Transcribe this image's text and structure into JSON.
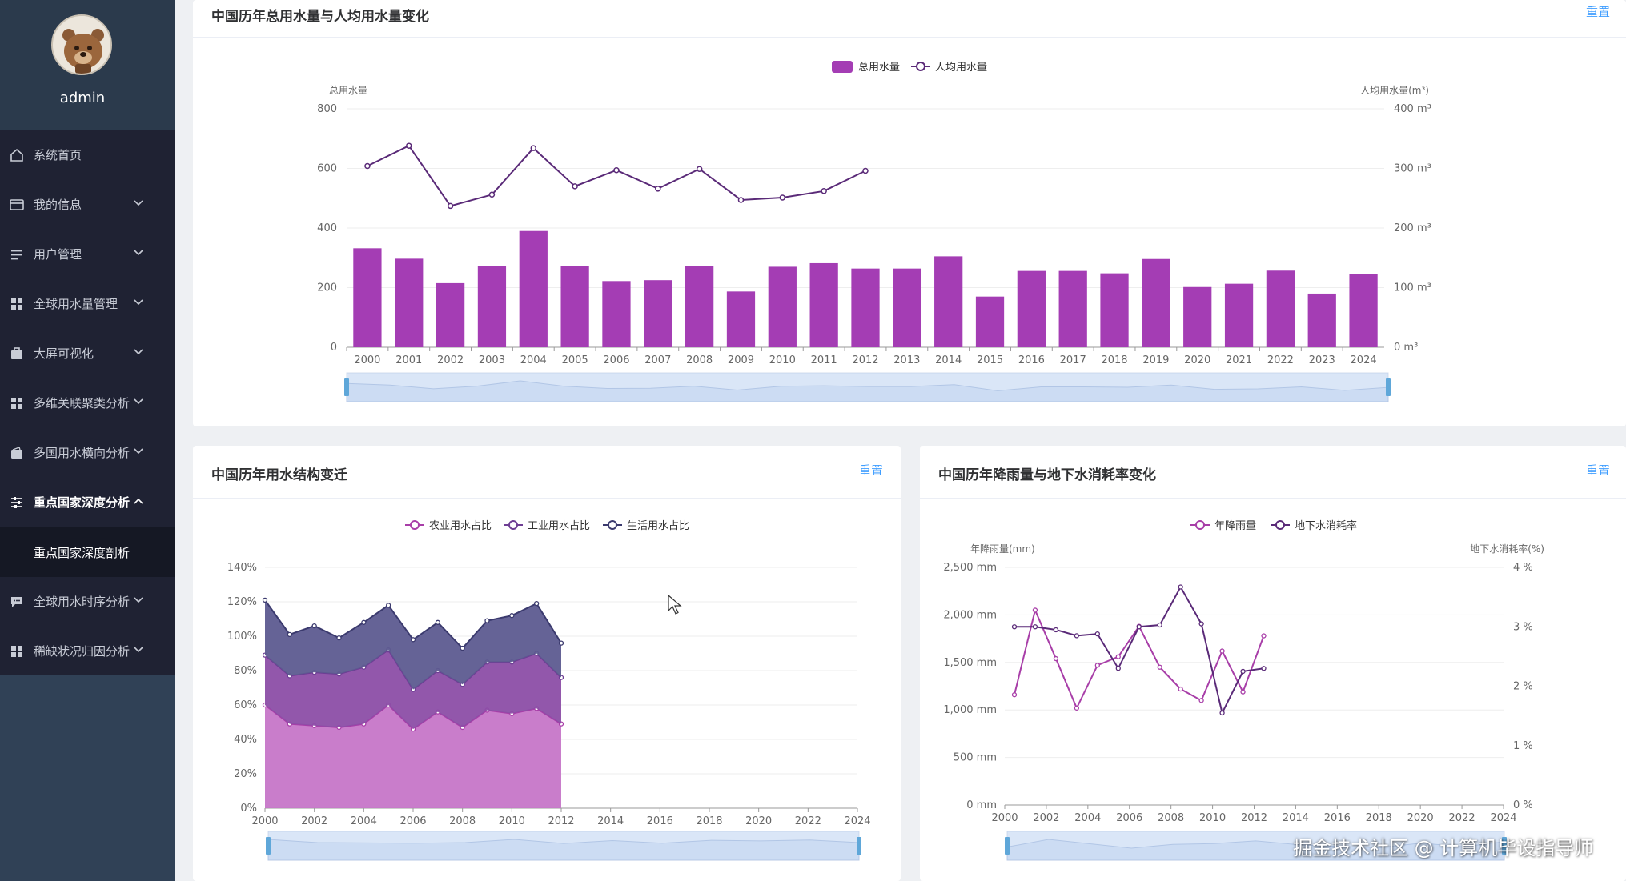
{
  "sidebar": {
    "username": "admin",
    "items": [
      {
        "label": "系统首页",
        "icon": "home-icon",
        "arrow": false
      },
      {
        "label": "我的信息",
        "icon": "card-icon",
        "arrow": true
      },
      {
        "label": "用户管理",
        "icon": "list-icon",
        "arrow": true
      },
      {
        "label": "全球用水量管理",
        "icon": "grid-icon",
        "arrow": true
      },
      {
        "label": "大屏可视化",
        "icon": "briefcase-icon",
        "arrow": true
      },
      {
        "label": "多维关联聚类分析",
        "icon": "grid-icon",
        "arrow": true
      },
      {
        "label": "多国用水横向分析",
        "icon": "wallet-icon",
        "arrow": true
      },
      {
        "label": "重点国家深度分析",
        "icon": "sliders-icon",
        "arrow": true,
        "expanded": true
      },
      {
        "label": "全球用水时序分析",
        "icon": "message-icon",
        "arrow": true
      },
      {
        "label": "稀缺状况归因分析",
        "icon": "grid-icon",
        "arrow": true
      }
    ],
    "subitem": "重点国家深度剖析"
  },
  "panels": {
    "top": {
      "title": "中国历年总用水量与人均用水量变化",
      "reset": "重置"
    },
    "bottom_left": {
      "title": "中国历年用水结构变迁",
      "reset": "重置"
    },
    "bottom_right": {
      "title": "中国历年降雨量与地下水消耗率变化",
      "reset": "重置"
    }
  },
  "watermark": "掘金技术社区 @ 计算机毕设指导师",
  "colors": {
    "sidebar_bg": "#304156",
    "menu_bg": "#1f2233",
    "bar": "#a43db4",
    "line_dark": "#5a2a78",
    "accent": "#409eff",
    "area_agri": "#c676c8",
    "area_ind": "#8c4ea6",
    "area_life": "#5d5b90"
  },
  "chart_data": [
    {
      "type": "bar",
      "categories": [
        "2000",
        "2001",
        "2002",
        "2003",
        "2004",
        "2005",
        "2006",
        "2007",
        "2008",
        "2009",
        "2010",
        "2011",
        "2012",
        "2013",
        "2014",
        "2015",
        "2016",
        "2017",
        "2018",
        "2019",
        "2020",
        "2021",
        "2022",
        "2023",
        "2024"
      ],
      "series": [
        {
          "name": "总用水量",
          "type": "bar",
          "axis": "left",
          "values": [
            332,
            297,
            215,
            273,
            390,
            273,
            222,
            225,
            272,
            187,
            270,
            282,
            264,
            264,
            305,
            170,
            256,
            256,
            248,
            296,
            202,
            213,
            257,
            180,
            246
          ]
        },
        {
          "name": "人均用水量",
          "type": "line",
          "axis": "right",
          "values": [
            304,
            338,
            237,
            256,
            334,
            270,
            297,
            266,
            299,
            247,
            251,
            262,
            296,
            null,
            null,
            null,
            null,
            null,
            null,
            null,
            null,
            null,
            null,
            null,
            null
          ]
        }
      ],
      "ylabel_left": "总用水量",
      "ylabel_right": "人均用水量(m³)",
      "yticks_left": [
        "0",
        "200",
        "400",
        "600",
        "800"
      ],
      "yticks_right": [
        "0 m³",
        "100 m³",
        "200 m³",
        "300 m³",
        "400 m³"
      ],
      "ylim_left": [
        0,
        800
      ],
      "ylim_right": [
        0,
        400
      ],
      "legend": "top-center",
      "datazoom": true
    },
    {
      "type": "area",
      "stacked": true,
      "x": [
        "2000",
        "2001",
        "2002",
        "2003",
        "2004",
        "2005",
        "2006",
        "2007",
        "2008",
        "2009",
        "2010",
        "2011",
        "2012"
      ],
      "xticks": [
        "2000",
        "2002",
        "2004",
        "2006",
        "2008",
        "2010",
        "2012",
        "2014",
        "2016",
        "2018",
        "2020",
        "2022",
        "2024"
      ],
      "series": [
        {
          "name": "农业用水占比",
          "values": [
            60,
            49,
            48,
            47,
            49,
            60,
            46,
            56,
            47,
            57,
            55,
            58,
            49
          ]
        },
        {
          "name": "工业用水占比",
          "values": [
            29,
            28,
            31,
            31,
            33,
            32,
            23,
            24,
            25,
            28,
            30,
            32,
            27
          ]
        },
        {
          "name": "生活用水占比",
          "values": [
            32,
            24,
            27,
            21,
            26,
            26,
            29,
            28,
            21,
            24,
            27,
            29,
            20
          ]
        }
      ],
      "yticks": [
        "0%",
        "20%",
        "40%",
        "60%",
        "80%",
        "100%",
        "120%",
        "140%"
      ],
      "ylim": [
        0,
        140
      ],
      "legend": "top-center",
      "datazoom": true
    },
    {
      "type": "line",
      "x": [
        "2000",
        "2001",
        "2002",
        "2003",
        "2004",
        "2005",
        "2006",
        "2007",
        "2008",
        "2009",
        "2010",
        "2011",
        "2012"
      ],
      "xticks": [
        "2000",
        "2002",
        "2004",
        "2006",
        "2008",
        "2010",
        "2012",
        "2014",
        "2016",
        "2018",
        "2020",
        "2022",
        "2024"
      ],
      "series": [
        {
          "name": "年降雨量",
          "axis": "left",
          "values": [
            1160,
            2050,
            1540,
            1020,
            1470,
            1560,
            1880,
            1450,
            1220,
            1100,
            1620,
            1190,
            1780
          ]
        },
        {
          "name": "地下水消耗率",
          "axis": "right",
          "values": [
            3.0,
            3.0,
            2.95,
            2.85,
            2.88,
            2.3,
            3.0,
            3.03,
            3.67,
            3.05,
            1.55,
            2.25,
            2.3
          ]
        }
      ],
      "ylabel_left": "年降雨量(mm)",
      "ylabel_right": "地下水消耗率(%)",
      "yticks_left": [
        "0 mm",
        "500 mm",
        "1,000 mm",
        "1,500 mm",
        "2,000 mm",
        "2,500 mm"
      ],
      "yticks_right": [
        "0 %",
        "1 %",
        "2 %",
        "3 %",
        "4 %"
      ],
      "ylim_left": [
        0,
        2500
      ],
      "ylim_right": [
        0,
        4
      ],
      "legend": "top-center",
      "datazoom": true
    }
  ]
}
